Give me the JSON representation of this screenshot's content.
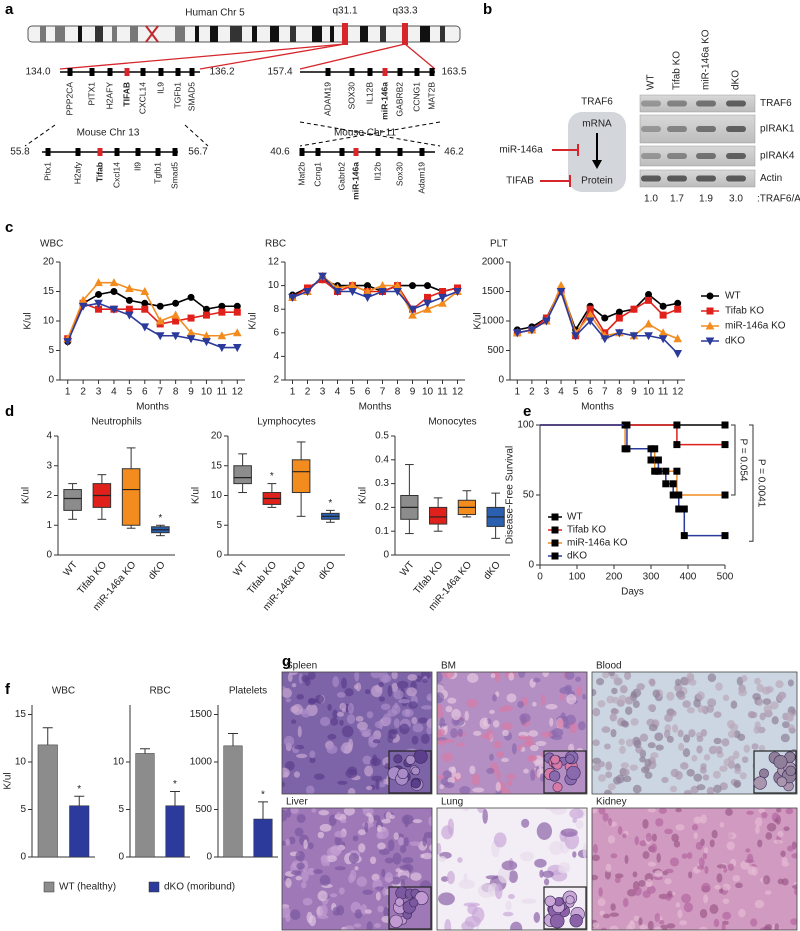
{
  "panel_labels": [
    "a",
    "b",
    "c",
    "d",
    "e",
    "f",
    "g"
  ],
  "panel_a": {
    "human_title": "Human Chr 5",
    "bands": [
      "q31.1",
      "q33.3"
    ],
    "regions": [
      {
        "start": "134.0",
        "end": "136.2",
        "genes": [
          "PPP2CA",
          "PITX1",
          "H2AFY",
          "TIFAB",
          "CXCL14",
          "IL9",
          "TGFb1",
          "SMAD5"
        ],
        "highlight": "TIFAB"
      },
      {
        "start": "157.4",
        "end": "163.5",
        "genes": [
          "ADAM19",
          "SOX30",
          "IL12B",
          "miR-146a",
          "GABRB2",
          "CCNG1",
          "MAT2B"
        ],
        "highlight": "miR-146a"
      },
      {
        "title": "Mouse Chr 13",
        "start": "55.8",
        "end": "56.7",
        "genes": [
          "Pitx1",
          "H2afy",
          "Tifab",
          "Cxcl14",
          "Il9",
          "Tgfb1",
          "Smad5"
        ],
        "highlight": "Tifab"
      },
      {
        "title": "Mouse Chr 11",
        "start": "40.6",
        "end": "46.2",
        "genes": [
          "Mat2b",
          "Ccng1",
          "Gabrb2",
          "miR-146a",
          "Il12b",
          "Sox30",
          "Adam19"
        ],
        "highlight": "miR-146a"
      }
    ]
  },
  "panel_b": {
    "pathway": {
      "target": "TRAF6",
      "mrna": "mRNA",
      "protein": "Protein",
      "mirna": "miR-146a",
      "inhibitor": "TIFAB"
    },
    "blot": {
      "lanes": [
        "WT",
        "Tifab KO",
        "miR-146a KO",
        "dKO"
      ],
      "rows": [
        "TRAF6",
        "pIRAK1",
        "pIRAK4",
        "Actin"
      ],
      "ratios": [
        "1.0",
        "1.7",
        "1.9",
        "3.0"
      ],
      "ratio_label": ":TRAF6/Actin"
    }
  },
  "chart_data": [
    {
      "type": "line",
      "title": "WBC",
      "ylabel": "K/ul",
      "xlabel": "Months",
      "x": [
        1,
        2,
        3,
        4,
        5,
        6,
        7,
        8,
        9,
        10,
        11,
        12
      ],
      "xlim": [
        0.5,
        12.5
      ],
      "xticks": [
        1,
        2,
        3,
        4,
        5,
        6,
        7,
        8,
        9,
        10,
        11,
        12
      ],
      "ylim": [
        0,
        20
      ],
      "yticks": [
        0,
        5,
        10,
        15,
        20
      ],
      "series": [
        {
          "color": "#000000",
          "marker": "circle",
          "values": [
            6.5,
            13,
            14.5,
            15,
            13.5,
            13,
            12.5,
            13,
            14,
            12,
            12.5,
            12.5
          ]
        },
        {
          "color": "#e0201b",
          "marker": "square",
          "values": [
            7,
            13,
            12,
            12,
            12,
            12,
            9.5,
            10,
            10.5,
            11,
            11.5,
            11.5
          ]
        },
        {
          "color": "#f28c1f",
          "marker": "triangle-up",
          "values": [
            7,
            13.5,
            16.5,
            16.5,
            15.5,
            15,
            10,
            11,
            8,
            7.5,
            7.5,
            8
          ]
        },
        {
          "color": "#2b3a9b",
          "marker": "triangle-down",
          "values": [
            6.5,
            12.5,
            13,
            12,
            11,
            9,
            7.5,
            7.5,
            7,
            6.5,
            5.5,
            5.5
          ]
        }
      ]
    },
    {
      "type": "line",
      "title": "RBC",
      "ylabel": "K/ul",
      "xlabel": "Months",
      "x": [
        1,
        2,
        3,
        4,
        5,
        6,
        7,
        8,
        9,
        10,
        11,
        12
      ],
      "xlim": [
        0.5,
        12.5
      ],
      "xticks": [
        1,
        2,
        3,
        4,
        5,
        6,
        7,
        8,
        9,
        10,
        11,
        12
      ],
      "ylim": [
        2,
        12
      ],
      "yticks": [
        2,
        4,
        6,
        8,
        10,
        12
      ],
      "series": [
        {
          "color": "#000000",
          "marker": "circle",
          "values": [
            9.2,
            9.8,
            10.5,
            10,
            10,
            10,
            9.5,
            10,
            10,
            10,
            9.5,
            9.8
          ]
        },
        {
          "color": "#e0201b",
          "marker": "square",
          "values": [
            9,
            9.8,
            10.5,
            9.5,
            10,
            9.5,
            9.5,
            10,
            8,
            9,
            9.5,
            9.8
          ]
        },
        {
          "color": "#f28c1f",
          "marker": "triangle-up",
          "values": [
            9,
            9.5,
            10.8,
            9.8,
            10,
            9.5,
            10,
            10,
            7.5,
            8,
            8.5,
            9.5
          ]
        },
        {
          "color": "#2b3a9b",
          "marker": "triangle-down",
          "values": [
            9,
            9.5,
            10.8,
            9.5,
            9.5,
            9,
            9.5,
            9.5,
            8,
            8.5,
            9,
            9.5
          ]
        }
      ]
    },
    {
      "type": "line",
      "title": "PLT",
      "ylabel": "K/ul",
      "xlabel": "Months",
      "x": [
        1,
        2,
        3,
        4,
        5,
        6,
        7,
        8,
        9,
        10,
        11,
        12
      ],
      "xlim": [
        0.5,
        12.5
      ],
      "xticks": [
        1,
        2,
        3,
        4,
        5,
        6,
        7,
        8,
        9,
        10,
        11,
        12
      ],
      "ylim": [
        0,
        2000
      ],
      "yticks": [
        0,
        500,
        1000,
        1500,
        2000
      ],
      "legend": "right",
      "series": [
        {
          "name": "WT",
          "color": "#000000",
          "marker": "circle",
          "values": [
            850,
            900,
            1050,
            1550,
            850,
            1250,
            1050,
            1150,
            1200,
            1450,
            1250,
            1300
          ]
        },
        {
          "name": "Tifab KO",
          "color": "#e0201b",
          "marker": "square",
          "values": [
            800,
            850,
            1050,
            1500,
            750,
            1200,
            800,
            1050,
            1200,
            1350,
            1100,
            1200
          ]
        },
        {
          "name": "miR-146a KO",
          "color": "#f28c1f",
          "marker": "triangle-up",
          "values": [
            800,
            850,
            1000,
            1600,
            800,
            1100,
            750,
            800,
            750,
            950,
            800,
            700
          ]
        },
        {
          "name": "dKO",
          "color": "#2b3a9b",
          "marker": "triangle-down",
          "values": [
            800,
            850,
            1000,
            1500,
            750,
            1000,
            700,
            800,
            750,
            750,
            700,
            450
          ]
        }
      ]
    },
    {
      "type": "box",
      "title": "Neutrophils",
      "ylabel": "K/ul",
      "categories": [
        "WT",
        "Tifab KO",
        "miR-146a KO",
        "dKO"
      ],
      "colors": [
        "#8c8c8c",
        "#e0201b",
        "#f28c1f",
        "#2b5fb0"
      ],
      "ylim": [
        0,
        4
      ],
      "yticks": [
        0,
        1,
        2,
        3,
        4
      ],
      "boxes": [
        {
          "min": 1.2,
          "q1": 1.5,
          "median": 1.9,
          "q3": 2.2,
          "max": 2.4
        },
        {
          "min": 1.2,
          "q1": 1.6,
          "median": 2.0,
          "q3": 2.4,
          "max": 2.7
        },
        {
          "min": 0.9,
          "q1": 1.0,
          "median": 2.2,
          "q3": 2.9,
          "max": 3.6
        },
        {
          "min": 0.65,
          "q1": 0.75,
          "median": 0.85,
          "q3": 0.95,
          "max": 1.0
        }
      ],
      "annotations": [
        {
          "category": "dKO",
          "text": "*"
        }
      ]
    },
    {
      "type": "box",
      "title": "Lymphocytes",
      "ylabel": "K/ul",
      "categories": [
        "WT",
        "Tifab KO",
        "miR-146a KO",
        "dKO"
      ],
      "colors": [
        "#8c8c8c",
        "#e0201b",
        "#f28c1f",
        "#2b5fb0"
      ],
      "ylim": [
        0,
        20
      ],
      "yticks": [
        0,
        5,
        10,
        15,
        20
      ],
      "boxes": [
        {
          "min": 10.5,
          "q1": 12,
          "median": 13,
          "q3": 15,
          "max": 17
        },
        {
          "min": 8,
          "q1": 8.5,
          "median": 9.5,
          "q3": 10.5,
          "max": 12
        },
        {
          "min": 6.5,
          "q1": 10.5,
          "median": 14,
          "q3": 16,
          "max": 19
        },
        {
          "min": 5.5,
          "q1": 6,
          "median": 6.5,
          "q3": 7,
          "max": 7.5
        }
      ],
      "annotations": [
        {
          "category": "Tifab KO",
          "text": "*"
        },
        {
          "category": "dKO",
          "text": "*"
        }
      ]
    },
    {
      "type": "box",
      "title": "Monocytes",
      "ylabel": "K/ul",
      "categories": [
        "WT",
        "Tifab KO",
        "miR-146a KO",
        "dKO"
      ],
      "colors": [
        "#8c8c8c",
        "#e0201b",
        "#f28c1f",
        "#2b5fb0"
      ],
      "ylim": [
        0,
        0.5
      ],
      "yticks": [
        0,
        0.1,
        0.2,
        0.3,
        0.4,
        0.5
      ],
      "boxes": [
        {
          "min": 0.09,
          "q1": 0.15,
          "median": 0.2,
          "q3": 0.25,
          "max": 0.38
        },
        {
          "min": 0.1,
          "q1": 0.13,
          "median": 0.16,
          "q3": 0.2,
          "max": 0.24
        },
        {
          "min": 0.16,
          "q1": 0.17,
          "median": 0.2,
          "q3": 0.23,
          "max": 0.27
        },
        {
          "min": 0.07,
          "q1": 0.12,
          "median": 0.16,
          "q3": 0.2,
          "max": 0.26
        }
      ]
    },
    {
      "type": "step",
      "ylabel": "Disease-Free Survival",
      "xlabel": "Days",
      "xlim": [
        0,
        500
      ],
      "xticks": [
        0,
        100,
        200,
        300,
        400,
        500
      ],
      "ylim": [
        0,
        100
      ],
      "yticks": [
        0,
        50,
        100
      ],
      "legend": "lower left",
      "series": [
        {
          "name": "WT",
          "color": "#000000",
          "x": [
            0,
            500
          ],
          "values": [
            100,
            100
          ]
        },
        {
          "name": "Tifab KO",
          "color": "#e0201b",
          "x": [
            0,
            370,
            370,
            500
          ],
          "values": [
            100,
            100,
            86,
            86
          ]
        },
        {
          "name": "miR-146a KO",
          "color": "#f28c1f",
          "x": [
            0,
            230,
            230,
            310,
            310,
            370,
            370,
            500
          ],
          "values": [
            100,
            100,
            83,
            83,
            67,
            67,
            50,
            50
          ]
        },
        {
          "name": "dKO",
          "color": "#2b3a9b",
          "x": [
            0,
            235,
            235,
            300,
            300,
            320,
            320,
            340,
            340,
            360,
            360,
            375,
            375,
            390,
            390,
            500
          ],
          "values": [
            100,
            100,
            83,
            83,
            75,
            75,
            67,
            67,
            58,
            58,
            50,
            50,
            40,
            40,
            21,
            21
          ]
        }
      ],
      "annotations": [
        {
          "text": "P = 0.054"
        },
        {
          "text": "P = 0.0041"
        }
      ]
    },
    {
      "type": "bar",
      "title": "WBC",
      "ylabel": "K/ul",
      "ylim": [
        0,
        16
      ],
      "yticks": [
        0,
        5,
        10,
        15
      ],
      "legend": "bottom",
      "series": [
        {
          "name": "WT (healthy)",
          "color": "#8c8c8c",
          "values": [
            11.8
          ],
          "errors": [
            1.8
          ]
        },
        {
          "name": "dKO (moribund)",
          "color": "#2b3a9b",
          "values": [
            5.4
          ],
          "errors": [
            1
          ]
        }
      ],
      "annotations": [
        {
          "text": "*"
        }
      ]
    },
    {
      "type": "bar",
      "title": "RBC",
      "ylim": [
        0,
        16
      ],
      "yticks": [
        0,
        5,
        10
      ],
      "series": [
        {
          "color": "#8c8c8c",
          "values": [
            10.9
          ],
          "errors": [
            0.5
          ]
        },
        {
          "color": "#2b3a9b",
          "values": [
            5.4
          ],
          "errors": [
            1.5
          ]
        }
      ],
      "annotations": [
        {
          "text": "*"
        }
      ]
    },
    {
      "type": "bar",
      "title": "Platelets",
      "ylim": [
        0,
        1600
      ],
      "yticks": [
        0,
        500,
        1000,
        1500
      ],
      "series": [
        {
          "color": "#8c8c8c",
          "values": [
            1170
          ],
          "errors": [
            130
          ]
        },
        {
          "color": "#2b3a9b",
          "values": [
            400
          ],
          "errors": [
            180
          ]
        }
      ],
      "annotations": [
        {
          "text": "*"
        }
      ]
    }
  ],
  "panel_g": {
    "images": [
      {
        "label": "Spleen",
        "inset": true
      },
      {
        "label": "BM",
        "inset": true
      },
      {
        "label": "Blood",
        "inset": true
      },
      {
        "label": "Liver",
        "inset": true
      },
      {
        "label": "Lung",
        "inset": true
      },
      {
        "label": "Kidney",
        "inset": false
      }
    ]
  }
}
